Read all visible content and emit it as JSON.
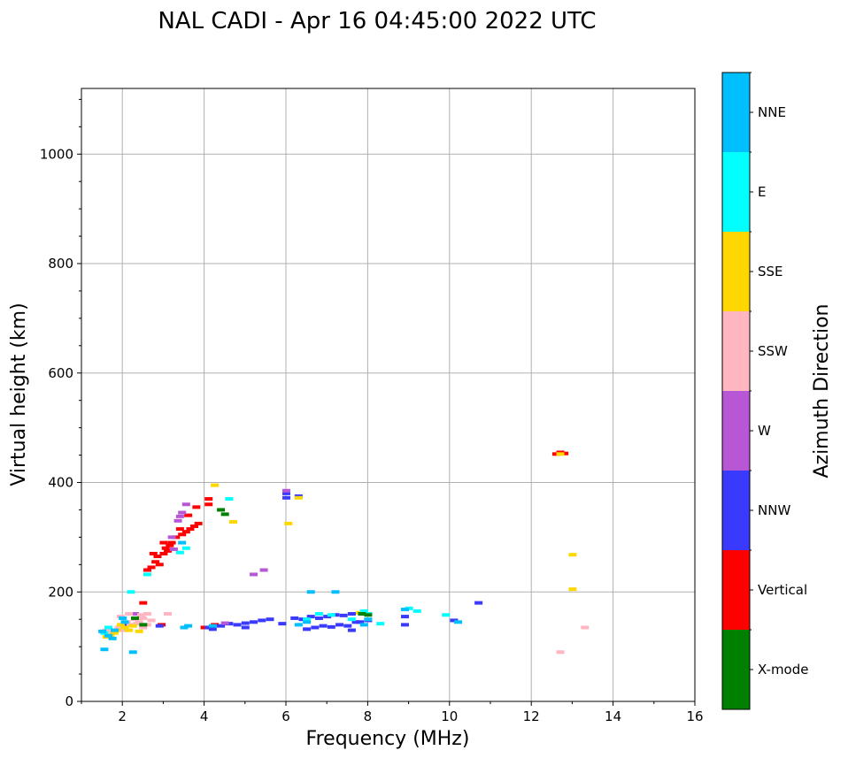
{
  "chart_data": {
    "type": "scatter",
    "title": "NAL CADI - Apr 16 04:45:00 2022 UTC",
    "xlabel": "Frequency (MHz)",
    "ylabel": "Virtual height (km)",
    "xlim": [
      1,
      16
    ],
    "ylim": [
      0,
      1120
    ],
    "xticks": [
      2,
      4,
      6,
      8,
      10,
      12,
      14,
      16
    ],
    "xtick_labels": [
      "2",
      "4",
      "6",
      "8",
      "10",
      "12",
      "14",
      "16"
    ],
    "yticks": [
      0,
      200,
      400,
      600,
      800,
      1000
    ],
    "ytick_labels": [
      "0",
      "200",
      "400",
      "600",
      "800",
      "1000"
    ],
    "grid": true,
    "colorbar": {
      "label": "Azimuth Direction",
      "categories": [
        {
          "name": "X-mode",
          "color": "#008000"
        },
        {
          "name": "Vertical",
          "color": "#ff0000"
        },
        {
          "name": "NNW",
          "color": "#3a3aff"
        },
        {
          "name": "W",
          "color": "#b757d6"
        },
        {
          "name": "SSW",
          "color": "#ffb6c1"
        },
        {
          "name": "SSE",
          "color": "#ffd700"
        },
        {
          "name": "E",
          "color": "#00ffff"
        },
        {
          "name": "NNE",
          "color": "#00bfff"
        }
      ]
    },
    "series": [
      {
        "name": "Vertical",
        "points": [
          [
            2.5,
            180
          ],
          [
            2.6,
            240
          ],
          [
            2.7,
            245
          ],
          [
            2.8,
            255
          ],
          [
            2.85,
            265
          ],
          [
            2.9,
            250
          ],
          [
            3.0,
            270
          ],
          [
            3.05,
            280
          ],
          [
            3.1,
            275
          ],
          [
            3.15,
            285
          ],
          [
            3.2,
            290
          ],
          [
            3.3,
            300
          ],
          [
            3.45,
            305
          ],
          [
            3.55,
            310
          ],
          [
            3.65,
            315
          ],
          [
            3.75,
            320
          ],
          [
            3.85,
            325
          ],
          [
            4.1,
            360
          ],
          [
            4.1,
            370
          ],
          [
            3.8,
            355
          ],
          [
            3.6,
            340
          ],
          [
            3.4,
            315
          ],
          [
            2.75,
            270
          ],
          [
            3.0,
            290
          ],
          [
            12.6,
            452
          ],
          [
            12.7,
            455
          ],
          [
            12.8,
            453
          ],
          [
            4.0,
            135
          ],
          [
            4.25,
            140
          ],
          [
            2.95,
            140
          ]
        ]
      },
      {
        "name": "NNW",
        "points": [
          [
            4.1,
            135
          ],
          [
            4.2,
            132
          ],
          [
            4.4,
            138
          ],
          [
            4.6,
            142
          ],
          [
            4.8,
            140
          ],
          [
            5.0,
            143
          ],
          [
            5.2,
            145
          ],
          [
            5.4,
            148
          ],
          [
            5.6,
            150
          ],
          [
            5.9,
            142
          ],
          [
            6.2,
            152
          ],
          [
            6.4,
            150
          ],
          [
            6.6,
            155
          ],
          [
            6.8,
            152
          ],
          [
            7.0,
            155
          ],
          [
            7.2,
            158
          ],
          [
            7.4,
            157
          ],
          [
            7.6,
            160
          ],
          [
            7.8,
            145
          ],
          [
            6.5,
            132
          ],
          [
            6.7,
            135
          ],
          [
            6.9,
            138
          ],
          [
            7.1,
            136
          ],
          [
            7.3,
            140
          ],
          [
            7.5,
            138
          ],
          [
            7.7,
            145
          ],
          [
            8.0,
            148
          ],
          [
            8.9,
            155
          ],
          [
            8.9,
            140
          ],
          [
            10.1,
            148
          ],
          [
            10.7,
            180
          ],
          [
            6.0,
            380
          ],
          [
            6.0,
            372
          ],
          [
            6.3,
            375
          ],
          [
            5.0,
            135
          ],
          [
            7.6,
            130
          ],
          [
            2.9,
            138
          ],
          [
            2.0,
            140
          ]
        ]
      },
      {
        "name": "W",
        "points": [
          [
            3.45,
            345
          ],
          [
            3.35,
            330
          ],
          [
            3.2,
            300
          ],
          [
            3.55,
            360
          ],
          [
            3.25,
            278
          ],
          [
            5.2,
            232
          ],
          [
            5.45,
            240
          ],
          [
            4.5,
            143
          ],
          [
            6.0,
            385
          ],
          [
            2.3,
            160
          ],
          [
            3.4,
            338
          ]
        ]
      },
      {
        "name": "SSW",
        "points": [
          [
            1.6,
            130
          ],
          [
            1.75,
            125
          ],
          [
            1.9,
            135
          ],
          [
            2.0,
            130
          ],
          [
            2.1,
            145
          ],
          [
            2.2,
            140
          ],
          [
            2.3,
            150
          ],
          [
            2.4,
            145
          ],
          [
            2.5,
            152
          ],
          [
            2.6,
            140
          ],
          [
            2.7,
            148
          ],
          [
            2.5,
            135
          ],
          [
            2.35,
            142
          ],
          [
            2.15,
            160
          ],
          [
            1.95,
            155
          ],
          [
            3.1,
            160
          ],
          [
            13.3,
            135
          ],
          [
            12.7,
            90
          ],
          [
            2.45,
            158
          ],
          [
            2.6,
            160
          ]
        ]
      },
      {
        "name": "SSE",
        "points": [
          [
            1.7,
            120
          ],
          [
            1.8,
            125
          ],
          [
            1.85,
            130
          ],
          [
            1.95,
            140
          ],
          [
            2.05,
            135
          ],
          [
            2.15,
            130
          ],
          [
            2.25,
            138
          ],
          [
            2.4,
            128
          ],
          [
            1.6,
            118
          ],
          [
            4.25,
            395
          ],
          [
            4.7,
            328
          ],
          [
            6.05,
            325
          ],
          [
            6.3,
            372
          ],
          [
            13.0,
            268
          ],
          [
            13.0,
            205
          ],
          [
            7.8,
            162
          ],
          [
            12.7,
            452
          ]
        ]
      },
      {
        "name": "E",
        "points": [
          [
            1.55,
            125
          ],
          [
            1.65,
            135
          ],
          [
            2.2,
            200
          ],
          [
            2.6,
            232
          ],
          [
            3.55,
            280
          ],
          [
            4.6,
            370
          ],
          [
            6.5,
            150
          ],
          [
            6.8,
            160
          ],
          [
            7.1,
            158
          ],
          [
            7.6,
            150
          ],
          [
            7.9,
            165
          ],
          [
            8.0,
            160
          ],
          [
            9.0,
            170
          ],
          [
            9.2,
            165
          ],
          [
            9.9,
            158
          ],
          [
            8.3,
            142
          ],
          [
            3.4,
            272
          ]
        ]
      },
      {
        "name": "NNE",
        "points": [
          [
            1.55,
            95
          ],
          [
            1.65,
            120
          ],
          [
            1.75,
            115
          ],
          [
            1.8,
            130
          ],
          [
            1.5,
            128
          ],
          [
            2.05,
            145
          ],
          [
            2.25,
            90
          ],
          [
            3.5,
            135
          ],
          [
            3.6,
            138
          ],
          [
            4.2,
            138
          ],
          [
            6.3,
            140
          ],
          [
            6.6,
            200
          ],
          [
            7.2,
            200
          ],
          [
            7.9,
            140
          ],
          [
            8.0,
            150
          ],
          [
            8.9,
            168
          ],
          [
            10.2,
            145
          ],
          [
            6.5,
            145
          ],
          [
            3.45,
            290
          ],
          [
            2.0,
            152
          ]
        ]
      },
      {
        "name": "X-mode",
        "points": [
          [
            4.4,
            350
          ],
          [
            4.5,
            342
          ],
          [
            2.3,
            152
          ],
          [
            7.85,
            160
          ],
          [
            2.5,
            140
          ],
          [
            8.0,
            158
          ]
        ]
      }
    ]
  }
}
